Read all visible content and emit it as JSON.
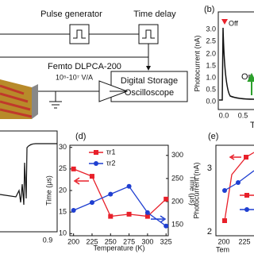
{
  "schematic": {
    "pulse_generator": "Pulse generator",
    "time_delay": "Time delay",
    "amplifier": "Femto DLPCA-200",
    "gain": "10⁵-10⁷ V/A",
    "storage": [
      "Digital Storage",
      "Oscilloscope"
    ]
  },
  "panel_b": {
    "label": "(b)",
    "ylabel": "Photocurrent (nA)",
    "yticks": [
      "3.0",
      "2.5",
      "2.0",
      "1.5",
      "1.0",
      "0.5",
      "0.0"
    ],
    "xticks": [
      "0.0",
      "0.5"
    ],
    "xlabel": "T",
    "off": "Off",
    "on": "On"
  },
  "panel_c": {
    "xticks": [
      "0.9"
    ]
  },
  "panel_d": {
    "chart_data": {
      "type": "line",
      "label": "(d)",
      "xlabel": "Temperature (K)",
      "ylabel": "Time (μs)",
      "y2label": "Time (μs)",
      "x": [
        200,
        225,
        250,
        275,
        300,
        325
      ],
      "series": [
        {
          "name": "τr1",
          "color": "#e8202a",
          "values": [
            25,
            23.3,
            14,
            14.5,
            14,
            18
          ]
        },
        {
          "name": "τr2",
          "color": "#1f3fd1",
          "axis": "y2",
          "values": [
            181,
            198,
            216,
            233,
            176,
            147
          ]
        }
      ],
      "xlim": [
        195,
        328
      ],
      "xticks": [
        200,
        225,
        250,
        275,
        300,
        325
      ],
      "ylim": [
        9.5,
        30.5
      ],
      "yticks": [
        10,
        15,
        20,
        25,
        30
      ],
      "y2lim": [
        126,
        322
      ],
      "y2ticks": [
        150,
        200,
        250,
        300
      ]
    }
  },
  "panel_e": {
    "label": "(e)",
    "ylabel": "Photocurrent (nA)",
    "yticks": [
      "3",
      "2"
    ],
    "xticks": [
      "200",
      "225"
    ],
    "xlabel": "Tem"
  }
}
